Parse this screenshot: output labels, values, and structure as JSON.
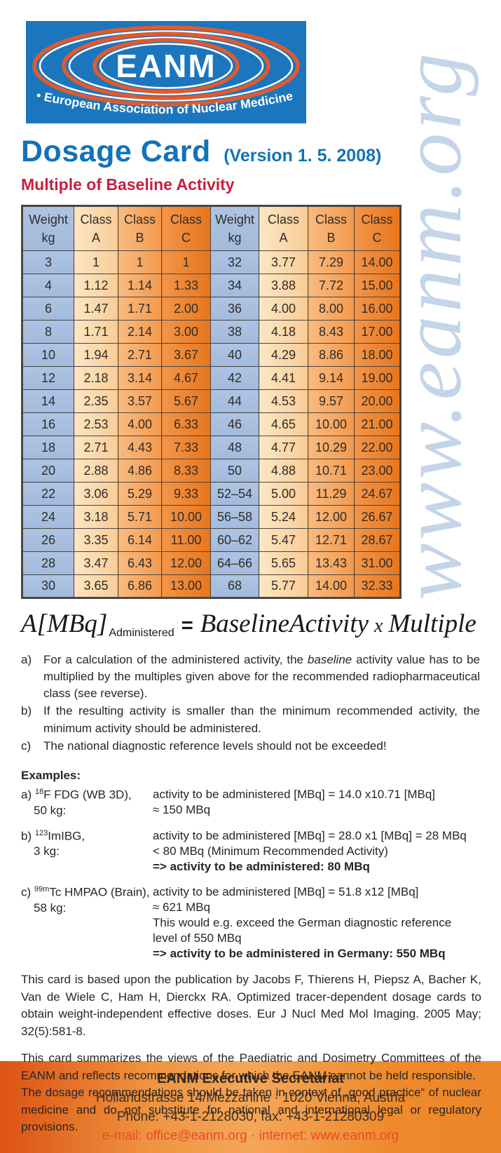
{
  "watermark": {
    "text": "www.eanm.org"
  },
  "logo": {
    "name": "EANM",
    "tagline": "• European Association of Nuclear Medicine •",
    "blue": "#1b76bd",
    "orange": "#e4592a"
  },
  "header": {
    "title": "Dosage Card",
    "version": "(Version 1. 5. 2008)",
    "subtitle": "Multiple of Baseline Activity"
  },
  "colors": {
    "title_blue": "#1173b8",
    "subtitle_red": "#c5203f",
    "weight_cell_blue": "#a8c0e0",
    "class_a_peach": "#fbd9a8",
    "class_b_orange": "#f5a55c",
    "class_c_dark_orange": "#ee8230",
    "footer_email_red": "#e74b2a"
  },
  "table": {
    "headers": [
      {
        "top": "Weight",
        "bottom": "kg"
      },
      {
        "top": "Class",
        "bottom": "A"
      },
      {
        "top": "Class",
        "bottom": "B"
      },
      {
        "top": "Class",
        "bottom": "C"
      },
      {
        "top": "Weight",
        "bottom": "kg"
      },
      {
        "top": "Class",
        "bottom": "A"
      },
      {
        "top": "Class",
        "bottom": "B"
      },
      {
        "top": "Class",
        "bottom": "C"
      }
    ],
    "rows": [
      [
        "3",
        "1",
        "1",
        "1",
        "32",
        "3.77",
        "7.29",
        "14.00"
      ],
      [
        "4",
        "1.12",
        "1.14",
        "1.33",
        "34",
        "3.88",
        "7.72",
        "15.00"
      ],
      [
        "6",
        "1.47",
        "1.71",
        "2.00",
        "36",
        "4.00",
        "8.00",
        "16.00"
      ],
      [
        "8",
        "1.71",
        "2.14",
        "3.00",
        "38",
        "4.18",
        "8.43",
        "17.00"
      ],
      [
        "10",
        "1.94",
        "2.71",
        "3.67",
        "40",
        "4.29",
        "8.86",
        "18.00"
      ],
      [
        "12",
        "2.18",
        "3.14",
        "4.67",
        "42",
        "4.41",
        "9.14",
        "19.00"
      ],
      [
        "14",
        "2.35",
        "3.57",
        "5.67",
        "44",
        "4.53",
        "9.57",
        "20.00"
      ],
      [
        "16",
        "2.53",
        "4.00",
        "6.33",
        "46",
        "4.65",
        "10.00",
        "21.00"
      ],
      [
        "18",
        "2.71",
        "4.43",
        "7.33",
        "48",
        "4.77",
        "10.29",
        "22.00"
      ],
      [
        "20",
        "2.88",
        "4.86",
        "8.33",
        "50",
        "4.88",
        "10.71",
        "23.00"
      ],
      [
        "22",
        "3.06",
        "5.29",
        "9.33",
        "52–54",
        "5.00",
        "11.29",
        "24.67"
      ],
      [
        "24",
        "3.18",
        "5.71",
        "10.00",
        "56–58",
        "5.24",
        "12.00",
        "26.67"
      ],
      [
        "26",
        "3.35",
        "6.14",
        "11.00",
        "60–62",
        "5.47",
        "12.71",
        "28.67"
      ],
      [
        "28",
        "3.47",
        "6.43",
        "12.00",
        "64–66",
        "5.65",
        "13.43",
        "31.00"
      ],
      [
        "30",
        "3.65",
        "6.86",
        "13.00",
        "68",
        "5.77",
        "14.00",
        "32.33"
      ]
    ]
  },
  "formula": {
    "lhs": "A[MBq]",
    "subscript": "Administered",
    "equals": "=",
    "rhs1": "BaselineActivity",
    "times": "x",
    "rhs2": "Multiple"
  },
  "notes": [
    {
      "label": "a)",
      "pre": "For a calculation of the administered activity, the ",
      "em": "baseline",
      "post": " activity value has to be multiplied by the multiples given above for the recommended radiopharmaceutical class (see reverse)."
    },
    {
      "label": "b)",
      "pre": "If the resulting activity is smaller than the minimum recommended activity, the minimum activity should be administered.",
      "em": "",
      "post": ""
    },
    {
      "label": "c)",
      "pre": "The national diagnostic reference levels should not be exceeded!",
      "em": "",
      "post": ""
    }
  ],
  "examples": {
    "heading": "Examples:",
    "items": [
      {
        "label": "a)",
        "isotope": "18",
        "agent": "F FDG (WB 3D),",
        "weight": "50 kg:",
        "lines": [
          {
            "text": "activity to be administered [MBq] = 14.0 x10.71 [MBq]",
            "bold": false
          },
          {
            "text": "≈ 150 MBq",
            "bold": false
          }
        ]
      },
      {
        "label": "b)",
        "isotope": "123",
        "agent": "ImIBG,",
        "weight": "3 kg:",
        "lines": [
          {
            "text": "activity to be administered [MBq] = 28.0 x1 [MBq] = 28 MBq",
            "bold": false
          },
          {
            "text": "< 80 MBq (Minimum Recommended Activity)",
            "bold": false
          },
          {
            "text": "=> activity to be administered: 80 MBq",
            "bold": true
          }
        ]
      },
      {
        "label": "c)",
        "isotope": "99m",
        "agent": "Tc HMPAO (Brain),",
        "weight": "58 kg:",
        "lines": [
          {
            "text": "activity to be administered [MBq] = 51.8 x12 [MBq]",
            "bold": false
          },
          {
            "text": "≈ 621 MBq",
            "bold": false
          },
          {
            "text": "This would e.g. exceed the German diagnostic reference",
            "bold": false
          },
          {
            "text": "level of 550 MBq",
            "bold": false
          },
          {
            "text": "=> activity to be administered in Germany: 550 MBq",
            "bold": true
          }
        ]
      }
    ]
  },
  "paragraphs": [
    "This card is based upon the publication by Jacobs F, Thierens H, Piepsz A, Bacher K, Van de Wiele C, Ham H, Dierckx RA. Optimized tracer-dependent dosage cards to obtain weight-independent effective doses. Eur J Nucl Med Mol Imaging. 2005 May; 32(5):581-8.",
    "This card summarizes the views of the Paediatric and Dosimetry Committees of the EANM and reflects recommendations for which the EANM cannot be held responsible.",
    "The dosage recommendations should be taken in context of „good practice“ of nuclear med­icine and do not substitute for national and international legal or regulatory provisions."
  ],
  "footer": {
    "title": "EANM Executive Secretariat",
    "address": "Hollandstrasse 14/Mezzanine · 1020 Vienna, Austria",
    "phone": "Phone: +43-1-2128030, fax: +43-1-21280309",
    "email": "e-mail: office@eanm.org · internet: www.eanm.org"
  }
}
